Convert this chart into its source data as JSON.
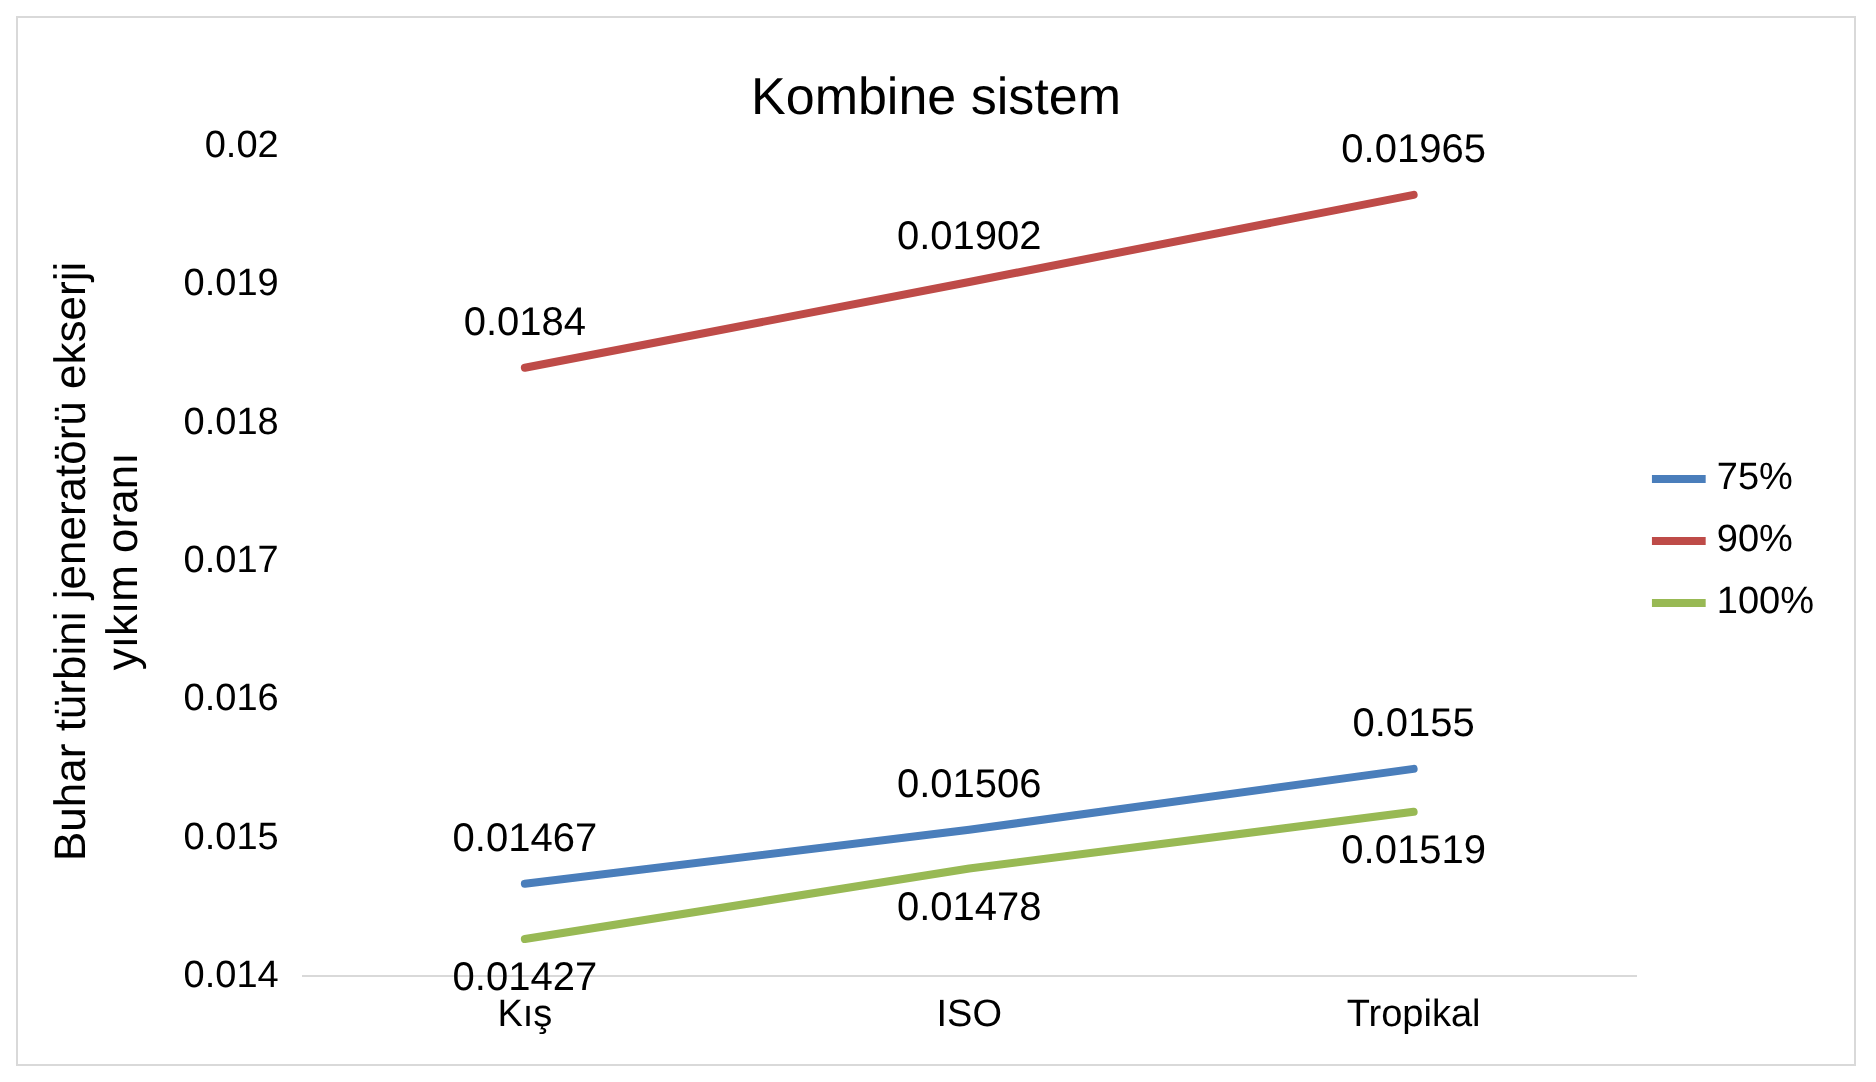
{
  "chart_data": {
    "type": "line",
    "title": "Kombine sistem",
    "ylabel": "Buhar türbini jeneratörü ekserji yıkım oranı",
    "categories": [
      "Kış",
      "ISO",
      "Tropikal"
    ],
    "series": [
      {
        "name": "75%",
        "color": "#4a7ebb",
        "values": [
          0.01467,
          0.01506,
          0.0155
        ]
      },
      {
        "name": "90%",
        "color": "#be4b48",
        "values": [
          0.0184,
          0.01902,
          0.01965
        ]
      },
      {
        "name": "100%",
        "color": "#98b954",
        "values": [
          0.01427,
          0.01478,
          0.01519
        ]
      }
    ],
    "ylim": [
      0.014,
      0.02
    ],
    "yticks": [
      0.014,
      0.015,
      0.016,
      0.017,
      0.018,
      0.019,
      0.02
    ],
    "grid": false,
    "legend": "right",
    "marker": "none",
    "line_style": "solid",
    "data_labels": true
  }
}
